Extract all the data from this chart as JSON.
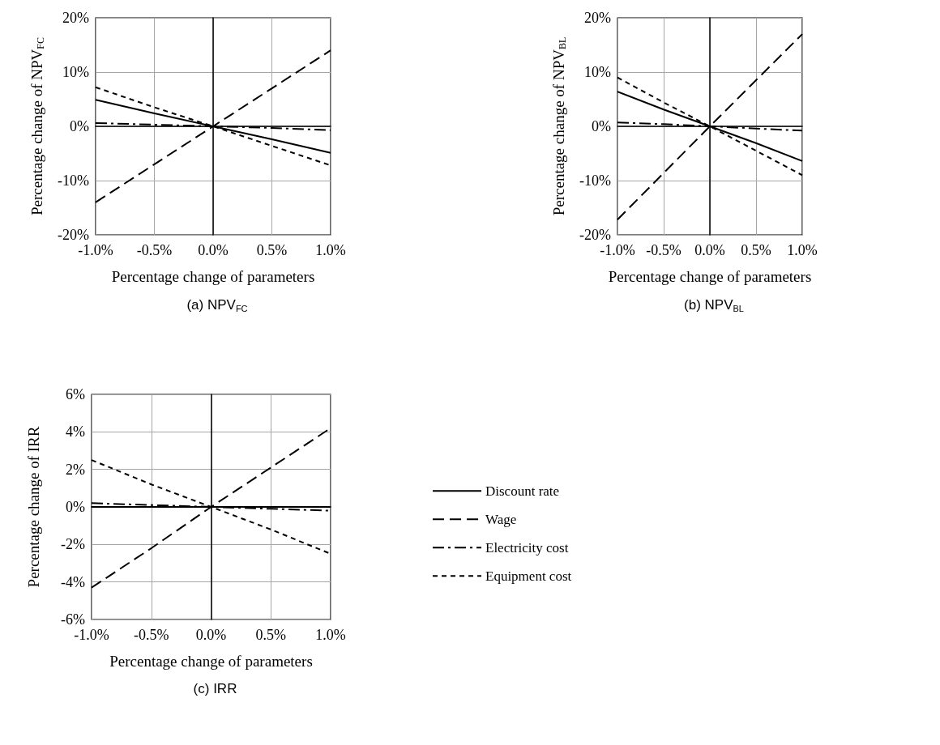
{
  "chart_data": [
    {
      "type": "line",
      "title": "(a) NPV$_{FC}$",
      "xlabel": "Percentage change of parameters",
      "ylabel": "Percentage change of NPV$_{FC}$",
      "x": [
        -1,
        -0.5,
        0,
        0.5,
        1
      ],
      "series": [
        {
          "color": "#000000",
          "line_style": "solid",
          "values": [
            4.9,
            2.4,
            0,
            -2.4,
            -4.9
          ]
        },
        {
          "color": "#000000",
          "line_style": "dashed",
          "values": [
            -14,
            -7,
            0,
            7,
            14
          ]
        },
        {
          "color": "#000000",
          "line_style": "dashdot",
          "values": [
            0.6,
            0.3,
            0,
            -0.3,
            -0.7
          ]
        },
        {
          "color": "#000000",
          "line_style": "dotted",
          "values": [
            7.2,
            3.5,
            0,
            -3.6,
            -7.2
          ]
        }
      ],
      "xlim": [
        -1,
        1
      ],
      "xticks": [
        {
          "value": -1,
          "label": "-1.0%"
        },
        {
          "value": -0.5,
          "label": "-0.5%"
        },
        {
          "value": 0,
          "label": "0.0%"
        },
        {
          "value": 0.5,
          "label": "0.5%"
        },
        {
          "value": 1,
          "label": "1.0%"
        }
      ],
      "ylim": [
        -20,
        20
      ],
      "yticks": [
        {
          "value": -20,
          "label": "-20%"
        },
        {
          "value": -10,
          "label": "-10%"
        },
        {
          "value": 0,
          "label": "0%"
        },
        {
          "value": 10,
          "label": "10%"
        },
        {
          "value": 20,
          "label": "20%"
        }
      ],
      "grid": true,
      "legend": false,
      "marker": "none"
    },
    {
      "type": "line",
      "title": "(b) NPV$_{BL}$",
      "xlabel": "Percentage change of parameters",
      "ylabel": "Percentage change of NPV$_{BL}$",
      "x": [
        -1,
        -0.5,
        0,
        0.5,
        1
      ],
      "series": [
        {
          "color": "#000000",
          "line_style": "solid",
          "values": [
            6.4,
            3.1,
            0,
            -3.1,
            -6.4
          ]
        },
        {
          "color": "#000000",
          "line_style": "dashed",
          "values": [
            -17.2,
            -8.6,
            0,
            8.5,
            17
          ]
        },
        {
          "color": "#000000",
          "line_style": "dashdot",
          "values": [
            0.7,
            0.4,
            0,
            -0.4,
            -0.8
          ]
        },
        {
          "color": "#000000",
          "line_style": "dotted",
          "values": [
            9,
            4.4,
            0,
            -4.5,
            -9
          ]
        }
      ],
      "xlim": [
        -1,
        1
      ],
      "xticks": [
        {
          "value": -1,
          "label": "-1.0%"
        },
        {
          "value": -0.5,
          "label": "-0.5%"
        },
        {
          "value": 0,
          "label": "0.0%"
        },
        {
          "value": 0.5,
          "label": "0.5%"
        },
        {
          "value": 1,
          "label": "1.0%"
        }
      ],
      "ylim": [
        -20,
        20
      ],
      "yticks": [
        {
          "value": -20,
          "label": "-20%"
        },
        {
          "value": -10,
          "label": "-10%"
        },
        {
          "value": 0,
          "label": "0%"
        },
        {
          "value": 10,
          "label": "10%"
        },
        {
          "value": 20,
          "label": "20%"
        }
      ],
      "grid": true,
      "legend": false,
      "marker": "none"
    },
    {
      "type": "line",
      "title": "(c) IRR",
      "xlabel": "Percentage change of parameters",
      "ylabel": "Percentage change of IRR",
      "x": [
        -1,
        -0.5,
        0,
        0.5,
        1
      ],
      "series": [
        {
          "name": "Discount rate",
          "color": "#000000",
          "line_style": "solid",
          "values": [
            0,
            0,
            0,
            0,
            0
          ]
        },
        {
          "name": "Wage",
          "color": "#000000",
          "line_style": "dashed",
          "values": [
            -4.3,
            -2.2,
            0,
            2.1,
            4.2
          ]
        },
        {
          "name": "Electricity cost",
          "color": "#000000",
          "line_style": "dashdot",
          "values": [
            0.2,
            0.1,
            0,
            -0.1,
            -0.2
          ]
        },
        {
          "name": "Equipment cost",
          "color": "#000000",
          "line_style": "dotted",
          "values": [
            2.5,
            1.2,
            0,
            -1.2,
            -2.5
          ]
        }
      ],
      "xlim": [
        -1,
        1
      ],
      "xticks": [
        {
          "value": -1,
          "label": "-1.0%"
        },
        {
          "value": -0.5,
          "label": "-0.5%"
        },
        {
          "value": 0,
          "label": "0.0%"
        },
        {
          "value": 0.5,
          "label": "0.5%"
        },
        {
          "value": 1,
          "label": "1.0%"
        }
      ],
      "ylim": [
        -6,
        6
      ],
      "yticks": [
        {
          "value": -6,
          "label": "-6%"
        },
        {
          "value": -4,
          "label": "-4%"
        },
        {
          "value": -2,
          "label": "-2%"
        },
        {
          "value": 0,
          "label": "0%"
        },
        {
          "value": 2,
          "label": "2%"
        },
        {
          "value": 4,
          "label": "4%"
        },
        {
          "value": 6,
          "label": "6%"
        }
      ],
      "grid": true,
      "legend": "right",
      "marker": "none"
    }
  ]
}
